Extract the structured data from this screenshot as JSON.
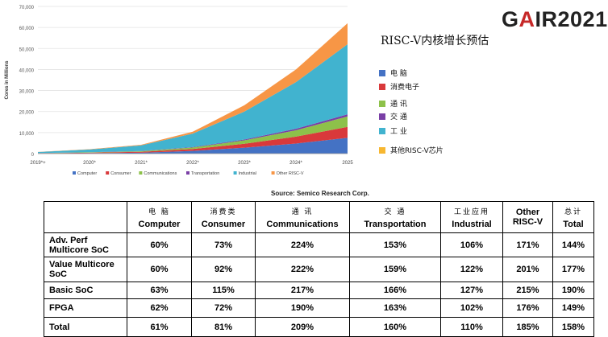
{
  "logo": {
    "prefix": "G",
    "a": "A",
    "suffix": "IR2021"
  },
  "headline": "RISC-V内核增长预估",
  "colors": {
    "computer": "#4472c4",
    "consumer": "#d9393b",
    "communications": "#8dc14a",
    "transportation": "#7a3fa6",
    "industrial": "#41b3cf",
    "other": "#f79646"
  },
  "legend_cn": [
    {
      "label": "电  脑",
      "color": "#4472c4"
    },
    {
      "label": "消费电子",
      "color": "#d9393b"
    },
    {
      "label": "通  讯",
      "color": "#8dc14a"
    },
    {
      "label": "交  通",
      "color": "#7a3fa6"
    },
    {
      "label": "工  业",
      "color": "#41b3cf"
    },
    {
      "label": "其他RISC-V芯片",
      "color": "#f7b731"
    }
  ],
  "source": "Source: Semico Research Corp.",
  "chart_data": {
    "type": "area",
    "stacked": true,
    "ylabel": "Cores in Millions",
    "ylim": [
      0,
      70000
    ],
    "yticks": [
      "0",
      "10,000",
      "20,000",
      "30,000",
      "40,000",
      "50,000",
      "60,000",
      "70,000"
    ],
    "categories": [
      "2019*+",
      "2020*",
      "2021*",
      "2022*",
      "2023*",
      "2024*",
      "2025"
    ],
    "grid": true,
    "legend_position": "bottom",
    "series": [
      {
        "name": "Computer",
        "color": "#4472c4",
        "values": [
          100,
          250,
          450,
          1300,
          2800,
          4800,
          7500
        ]
      },
      {
        "name": "Consumer",
        "color": "#d9393b",
        "values": [
          80,
          200,
          400,
          900,
          1900,
          3300,
          5200
        ]
      },
      {
        "name": "Communications",
        "color": "#8dc14a",
        "values": [
          70,
          150,
          300,
          700,
          1600,
          3000,
          5000
        ]
      },
      {
        "name": "Transportation",
        "color": "#7a3fa6",
        "values": [
          20,
          50,
          80,
          200,
          400,
          700,
          1000
        ]
      },
      {
        "name": "Industrial",
        "color": "#41b3cf",
        "values": [
          500,
          1300,
          2700,
          6400,
          13300,
          22200,
          33300
        ]
      },
      {
        "name": "Other RISC-V",
        "color": "#f79646",
        "values": [
          50,
          150,
          300,
          900,
          3000,
          6000,
          10000
        ]
      }
    ]
  },
  "table": {
    "columns": [
      {
        "cn": "电  脑",
        "en": "Computer"
      },
      {
        "cn": "消费类",
        "en": "Consumer"
      },
      {
        "cn": "通  讯",
        "en": "Communications"
      },
      {
        "cn": "交  通",
        "en": "Transportation"
      },
      {
        "cn": "工业应用",
        "en": "Industrial"
      },
      {
        "cn": "",
        "en": "Other RISC-V"
      },
      {
        "cn": "总计",
        "en": "Total"
      }
    ],
    "rows": [
      {
        "label": "Adv. Perf Multicore SoC",
        "values": [
          "60%",
          "73%",
          "224%",
          "153%",
          "106%",
          "171%",
          "144%"
        ]
      },
      {
        "label": "Value Multicore SoC",
        "values": [
          "60%",
          "92%",
          "222%",
          "159%",
          "122%",
          "201%",
          "177%"
        ]
      },
      {
        "label": "Basic SoC",
        "values": [
          "63%",
          "115%",
          "217%",
          "166%",
          "127%",
          "215%",
          "190%"
        ]
      },
      {
        "label": "FPGA",
        "values": [
          "62%",
          "72%",
          "190%",
          "163%",
          "102%",
          "176%",
          "149%"
        ]
      },
      {
        "label": "Total",
        "values": [
          "61%",
          "81%",
          "209%",
          "160%",
          "110%",
          "185%",
          "158%"
        ]
      }
    ]
  }
}
